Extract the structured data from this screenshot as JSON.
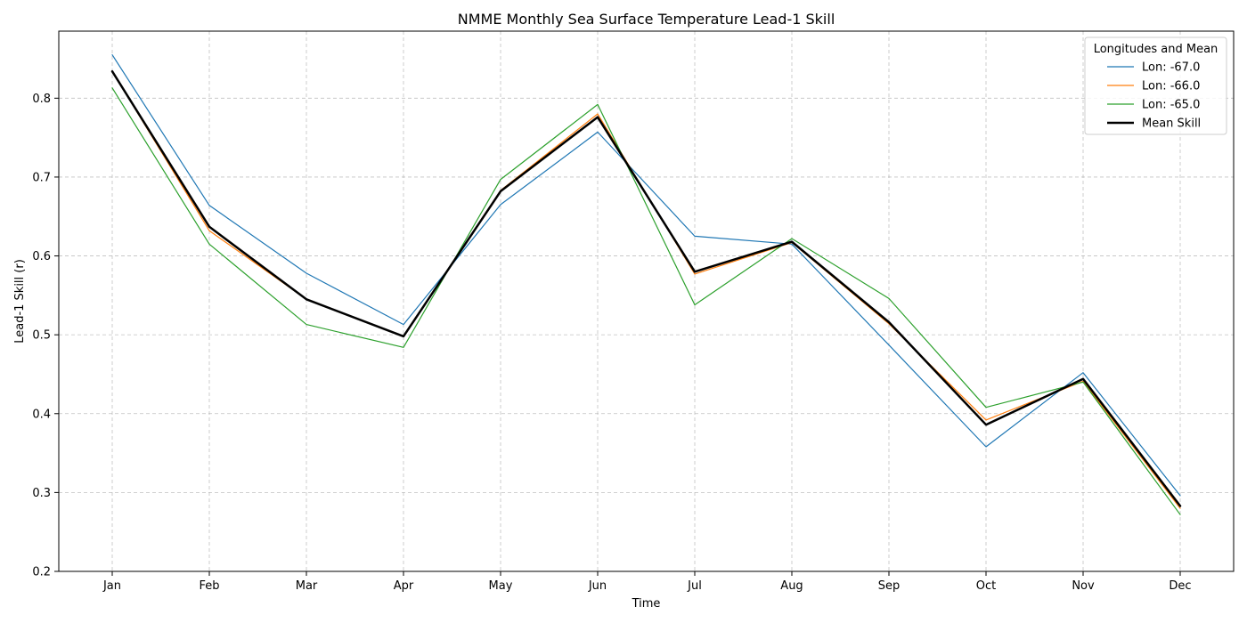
{
  "chart_data": {
    "type": "line",
    "title": "NMME Monthly Sea Surface Temperature Lead-1 Skill",
    "xlabel": "Time",
    "ylabel": "Lead-1 Skill (r)",
    "categories": [
      "Jan",
      "Feb",
      "Mar",
      "Apr",
      "May",
      "Jun",
      "Jul",
      "Aug",
      "Sep",
      "Oct",
      "Nov",
      "Dec"
    ],
    "ylim": [
      0.2,
      0.885
    ],
    "yticks": [
      "0.2",
      "0.3",
      "0.4",
      "0.5",
      "0.6",
      "0.7",
      "0.8"
    ],
    "grid": true,
    "legend": {
      "title": "Longitudes and Mean",
      "position": "top-right"
    },
    "series": [
      {
        "name": "Lon: -67.0",
        "color": "#1f77b4",
        "width": "thin",
        "values": [
          0.855,
          0.664,
          0.578,
          0.513,
          0.665,
          0.757,
          0.625,
          0.615,
          0.487,
          0.358,
          0.452,
          0.296
        ]
      },
      {
        "name": "Lon: -66.0",
        "color": "#ff7f0e",
        "width": "thin",
        "values": [
          0.834,
          0.632,
          0.545,
          0.498,
          0.683,
          0.78,
          0.577,
          0.617,
          0.514,
          0.392,
          0.441,
          0.28
        ]
      },
      {
        "name": "Lon: -65.0",
        "color": "#2ca02c",
        "width": "thin",
        "values": [
          0.813,
          0.615,
          0.513,
          0.484,
          0.697,
          0.792,
          0.538,
          0.622,
          0.546,
          0.408,
          0.44,
          0.272
        ]
      },
      {
        "name": "Mean Skill",
        "color": "#000000",
        "width": "thick",
        "values": [
          0.834,
          0.637,
          0.545,
          0.498,
          0.682,
          0.776,
          0.58,
          0.618,
          0.516,
          0.386,
          0.444,
          0.283
        ]
      }
    ]
  }
}
